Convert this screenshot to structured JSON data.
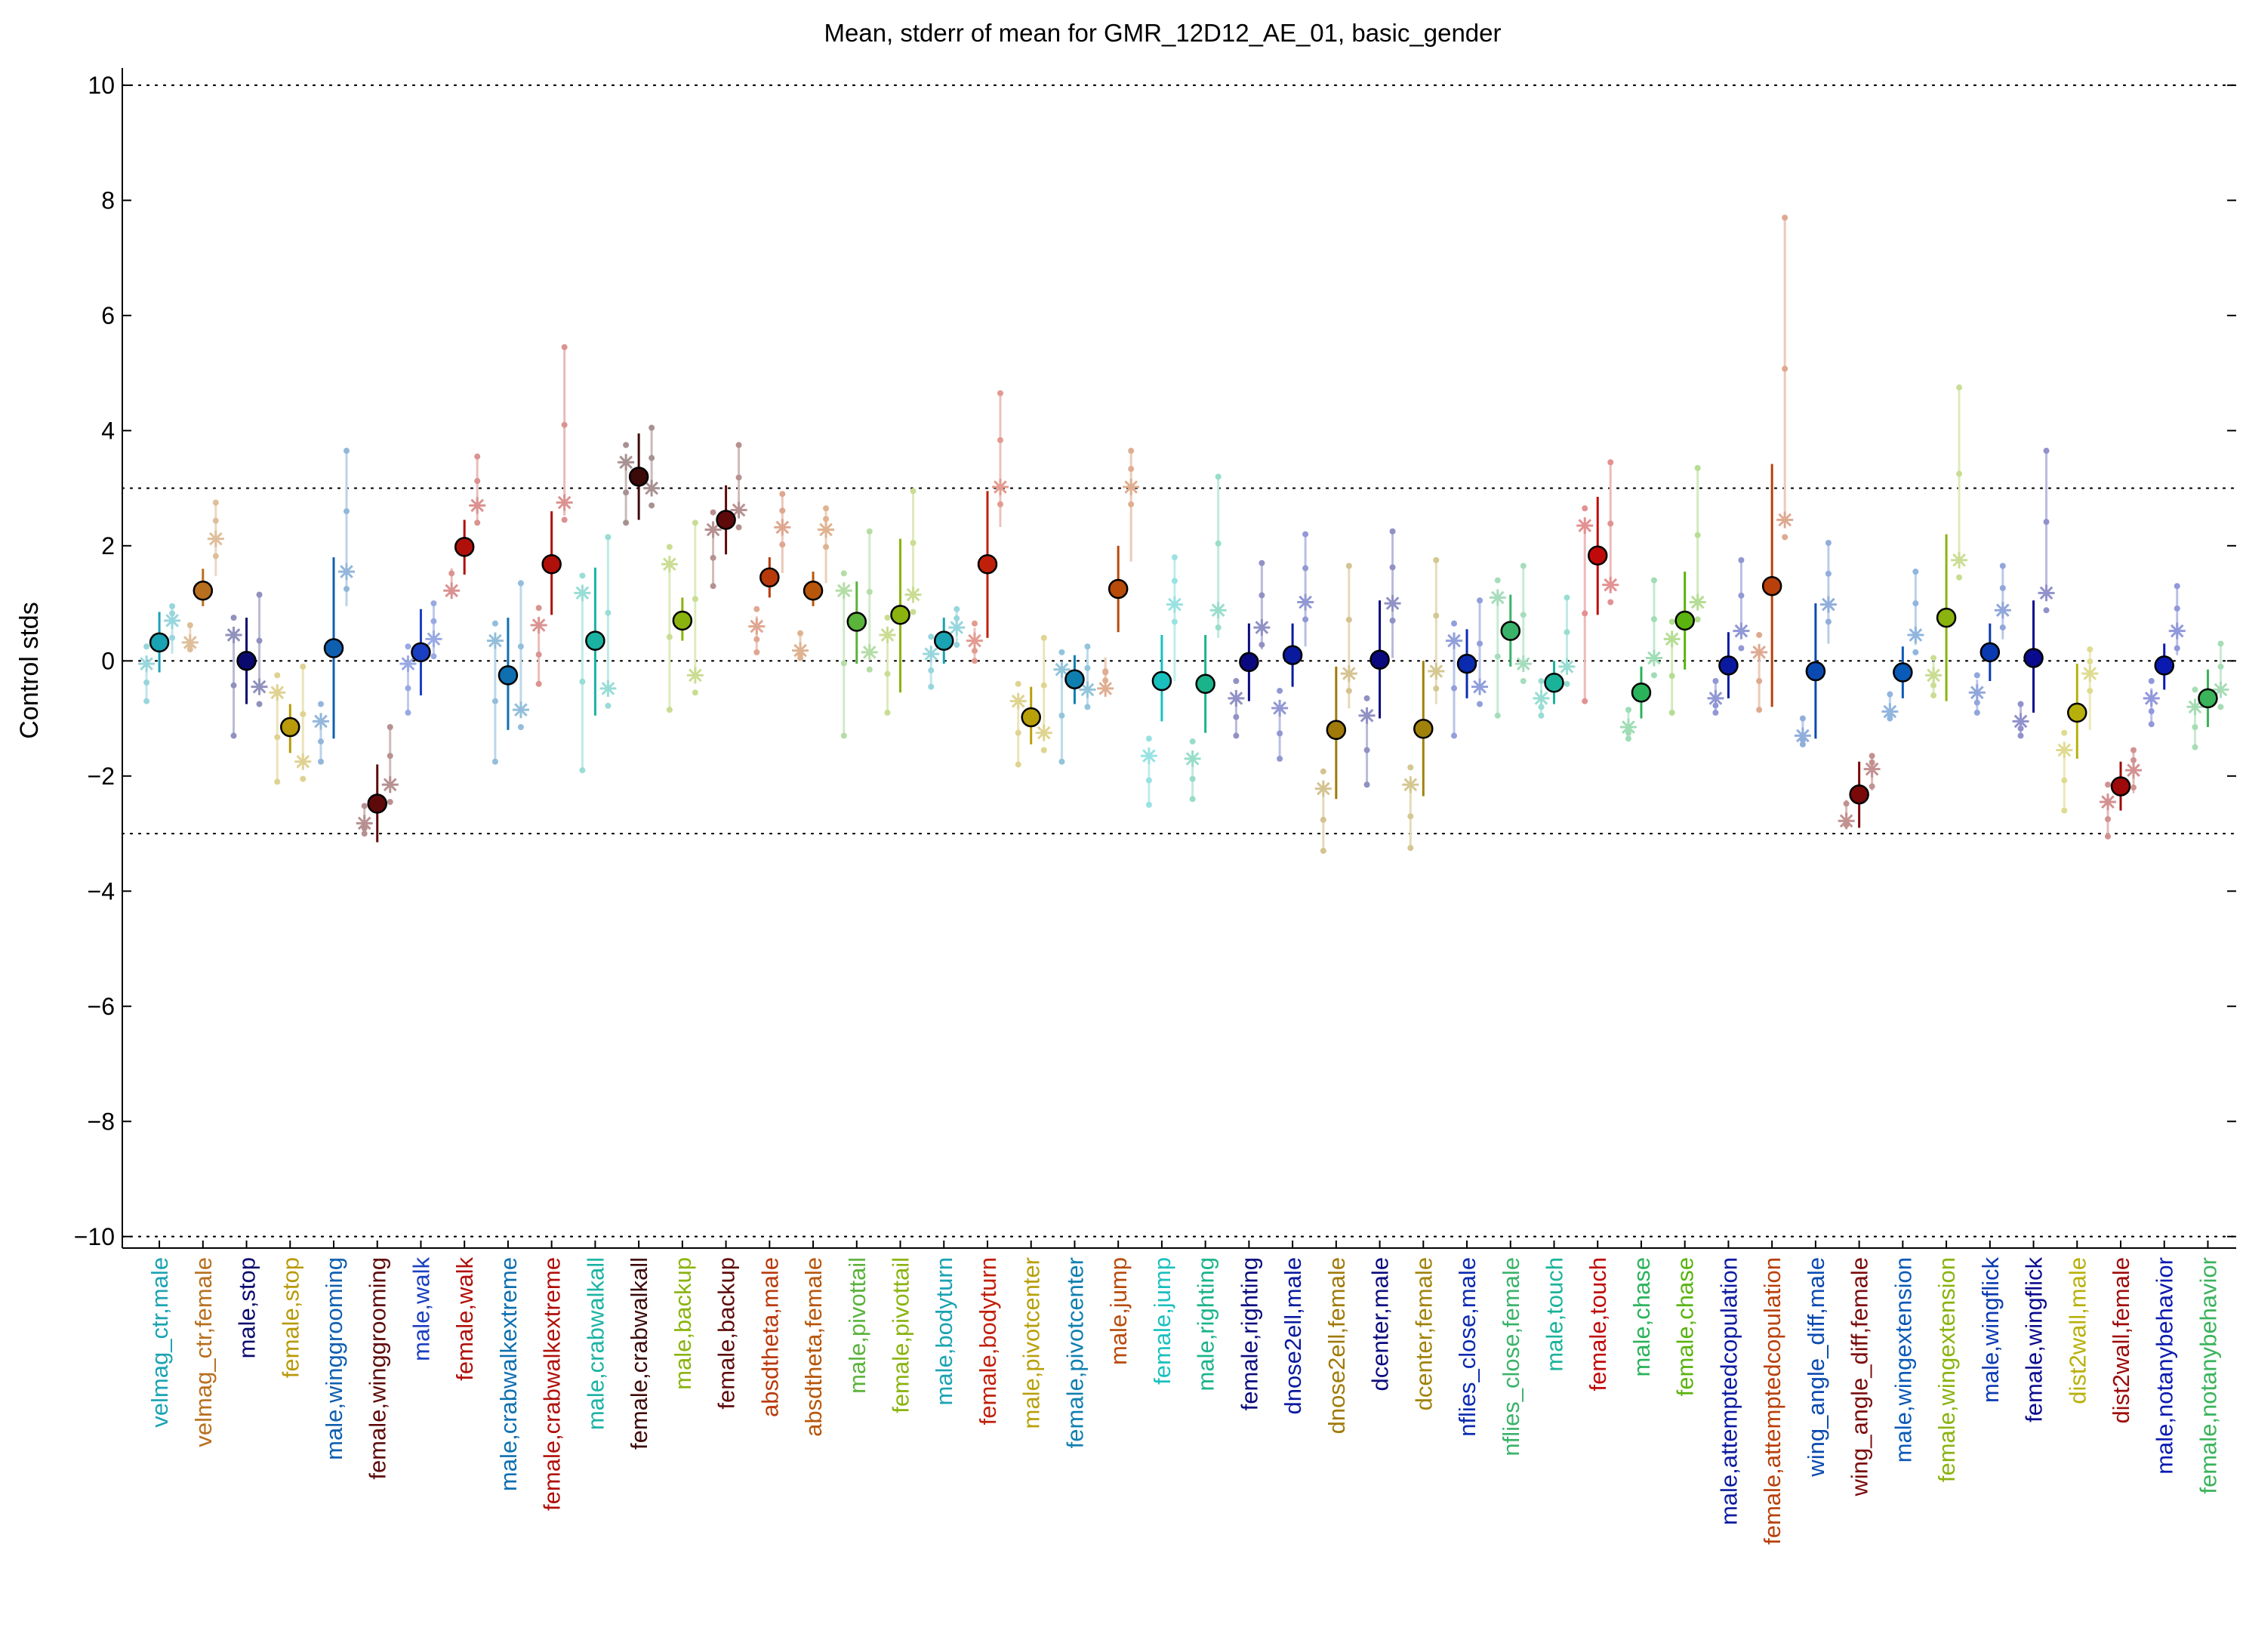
{
  "chart_data": {
    "type": "scatter",
    "title": "Mean, stderr of mean for GMR_12D12_AE_01, basic_gender",
    "ylabel": "Control stds",
    "xlabel": "",
    "ylim": [
      -10.2,
      10.3
    ],
    "yticks": [
      -10,
      -8,
      -6,
      -4,
      -2,
      0,
      2,
      4,
      6,
      8,
      10
    ],
    "reference_lines": [
      -10,
      -3,
      0,
      3,
      10
    ],
    "grid": false,
    "series": [
      {
        "label": "velmag_ctr,male",
        "color": "#1aa3b3",
        "mean": 0.32,
        "lo": -0.2,
        "hi": 0.85,
        "stars": [
          -0.05,
          0.7
        ],
        "dot_range": [
          -0.7,
          0.95
        ]
      },
      {
        "label": "velmag_ctr,female",
        "color": "#b86f1e",
        "mean": 1.22,
        "lo": 0.95,
        "hi": 1.6,
        "stars": [
          0.32,
          2.12
        ],
        "dot_range": [
          0.2,
          2.75
        ]
      },
      {
        "label": "male,stop",
        "color": "#0a0a6e",
        "mean": 0.0,
        "lo": -0.75,
        "hi": 0.75,
        "stars": [
          0.45,
          -0.45
        ],
        "dot_range": [
          -1.3,
          1.15
        ]
      },
      {
        "label": "female,stop",
        "color": "#b89a0a",
        "mean": -1.15,
        "lo": -1.6,
        "hi": -0.75,
        "stars": [
          -0.55,
          -1.75
        ],
        "dot_range": [
          -2.1,
          -0.1
        ]
      },
      {
        "label": "male,winggrooming",
        "color": "#0f5fb0",
        "mean": 0.22,
        "lo": -1.35,
        "hi": 1.8,
        "stars": [
          -1.05,
          1.55
        ],
        "dot_range": [
          -1.75,
          3.65
        ]
      },
      {
        "label": "female,winggrooming",
        "color": "#5e0a0a",
        "mean": -2.48,
        "lo": -3.15,
        "hi": -1.8,
        "stars": [
          -2.82,
          -2.15
        ],
        "dot_range": [
          -3.0,
          -1.15
        ]
      },
      {
        "label": "male,walk",
        "color": "#1a3fc0",
        "mean": 0.15,
        "lo": -0.6,
        "hi": 0.9,
        "stars": [
          -0.05,
          0.38
        ],
        "dot_range": [
          -0.9,
          1.0
        ]
      },
      {
        "label": "female,walk",
        "color": "#b0100a",
        "mean": 1.98,
        "lo": 1.5,
        "hi": 2.45,
        "stars": [
          1.22,
          2.7
        ],
        "dot_range": [
          1.2,
          3.55
        ]
      },
      {
        "label": "male,crabwalkextreme",
        "color": "#0f6fb0",
        "mean": -0.25,
        "lo": -1.2,
        "hi": 0.75,
        "stars": [
          0.35,
          -0.85
        ],
        "dot_range": [
          -1.75,
          1.35
        ]
      },
      {
        "label": "female,crabwalkextreme",
        "color": "#b0100a",
        "mean": 1.68,
        "lo": 0.8,
        "hi": 2.6,
        "stars": [
          0.62,
          2.75
        ],
        "dot_range": [
          -0.4,
          5.45
        ]
      },
      {
        "label": "male,crabwalkall",
        "color": "#1ab3a3",
        "mean": 0.35,
        "lo": -0.95,
        "hi": 1.62,
        "stars": [
          1.18,
          -0.48
        ],
        "dot_range": [
          -1.9,
          2.15
        ]
      },
      {
        "label": "female,crabwalkall",
        "color": "#3d0a0a",
        "mean": 3.2,
        "lo": 2.45,
        "hi": 3.95,
        "stars": [
          3.45,
          3.0
        ],
        "dot_range": [
          2.4,
          4.05
        ]
      },
      {
        "label": "male,backup",
        "color": "#8ab30f",
        "mean": 0.7,
        "lo": 0.35,
        "hi": 1.1,
        "stars": [
          1.68,
          -0.25
        ],
        "dot_range": [
          -0.85,
          2.4
        ]
      },
      {
        "label": "female,backup",
        "color": "#5e0a0a",
        "mean": 2.45,
        "lo": 1.85,
        "hi": 3.05,
        "stars": [
          2.28,
          2.62
        ],
        "dot_range": [
          1.3,
          3.75
        ]
      },
      {
        "label": "absdtheta,male",
        "color": "#b83a0a",
        "mean": 1.45,
        "lo": 1.1,
        "hi": 1.8,
        "stars": [
          0.6,
          2.32
        ],
        "dot_range": [
          0.15,
          2.9
        ]
      },
      {
        "label": "absdtheta,female",
        "color": "#b8560a",
        "mean": 1.22,
        "lo": 0.95,
        "hi": 1.55,
        "stars": [
          0.18,
          2.28
        ],
        "dot_range": [
          0.05,
          2.65
        ]
      },
      {
        "label": "male,pivottail",
        "color": "#5ab33a",
        "mean": 0.68,
        "lo": -0.05,
        "hi": 1.38,
        "stars": [
          1.22,
          0.15
        ],
        "dot_range": [
          -1.3,
          2.25
        ]
      },
      {
        "label": "female,pivottail",
        "color": "#8ab30f",
        "mean": 0.8,
        "lo": -0.55,
        "hi": 2.12,
        "stars": [
          0.45,
          1.15
        ],
        "dot_range": [
          -0.9,
          2.95
        ]
      },
      {
        "label": "male,bodyturn",
        "color": "#1aa3b3",
        "mean": 0.35,
        "lo": -0.05,
        "hi": 0.75,
        "stars": [
          0.12,
          0.58
        ],
        "dot_range": [
          -0.45,
          0.9
        ]
      },
      {
        "label": "female,bodyturn",
        "color": "#c0200a",
        "mean": 1.68,
        "lo": 0.4,
        "hi": 2.95,
        "stars": [
          0.35,
          3.02
        ],
        "dot_range": [
          0.0,
          4.65
        ]
      },
      {
        "label": "male,pivotcenter",
        "color": "#b8a00a",
        "mean": -0.98,
        "lo": -1.45,
        "hi": -0.45,
        "stars": [
          -0.7,
          -1.25
        ],
        "dot_range": [
          -1.8,
          0.4
        ]
      },
      {
        "label": "female,pivotcenter",
        "color": "#0f7fb0",
        "mean": -0.32,
        "lo": -0.75,
        "hi": 0.1,
        "stars": [
          -0.15,
          -0.5
        ],
        "dot_range": [
          -1.75,
          0.25
        ]
      },
      {
        "label": "male,jump",
        "color": "#b84a0a",
        "mean": 1.25,
        "lo": 0.5,
        "hi": 2.0,
        "stars": [
          -0.48,
          3.02
        ],
        "dot_range": [
          -0.2,
          3.65
        ]
      },
      {
        "label": "female,jump",
        "color": "#1abfbf",
        "mean": -0.35,
        "lo": -1.05,
        "hi": 0.45,
        "stars": [
          -1.65,
          0.98
        ],
        "dot_range": [
          -2.5,
          1.8
        ]
      },
      {
        "label": "male,righting",
        "color": "#1ab38a",
        "mean": -0.4,
        "lo": -1.25,
        "hi": 0.45,
        "stars": [
          -1.7,
          0.88
        ],
        "dot_range": [
          -2.4,
          3.2
        ]
      },
      {
        "label": "female,righting",
        "color": "#0a0a7e",
        "mean": -0.02,
        "lo": -0.7,
        "hi": 0.65,
        "stars": [
          -0.65,
          0.58
        ],
        "dot_range": [
          -1.3,
          1.7
        ]
      },
      {
        "label": "dnose2ell,male",
        "color": "#0a1a9e",
        "mean": 0.1,
        "lo": -0.45,
        "hi": 0.65,
        "stars": [
          -0.82,
          1.02
        ],
        "dot_range": [
          -1.7,
          2.2
        ]
      },
      {
        "label": "dnose2ell,female",
        "color": "#a07a0a",
        "mean": -1.2,
        "lo": -2.4,
        "hi": -0.1,
        "stars": [
          -2.22,
          -0.22
        ],
        "dot_range": [
          -3.3,
          1.65
        ]
      },
      {
        "label": "dcenter,male",
        "color": "#0a0a7e",
        "mean": 0.02,
        "lo": -1.0,
        "hi": 1.05,
        "stars": [
          -0.95,
          1.0
        ],
        "dot_range": [
          -2.15,
          2.25
        ]
      },
      {
        "label": "dcenter,female",
        "color": "#a0820a",
        "mean": -1.18,
        "lo": -2.35,
        "hi": 0.0,
        "stars": [
          -2.15,
          -0.18
        ],
        "dot_range": [
          -3.25,
          1.75
        ]
      },
      {
        "label": "nflies_close,male",
        "color": "#0a2ab0",
        "mean": -0.05,
        "lo": -0.65,
        "hi": 0.55,
        "stars": [
          0.35,
          -0.45
        ],
        "dot_range": [
          -1.3,
          1.05
        ]
      },
      {
        "label": "nflies_close,female",
        "color": "#3ab36a",
        "mean": 0.52,
        "lo": -0.1,
        "hi": 1.15,
        "stars": [
          1.1,
          -0.05
        ],
        "dot_range": [
          -0.95,
          1.65
        ]
      },
      {
        "label": "male,touch",
        "color": "#1ab39a",
        "mean": -0.38,
        "lo": -0.75,
        "hi": 0.0,
        "stars": [
          -0.65,
          -0.1
        ],
        "dot_range": [
          -0.95,
          1.1
        ]
      },
      {
        "label": "female,touch",
        "color": "#c00a0a",
        "mean": 1.83,
        "lo": 0.8,
        "hi": 2.85,
        "stars": [
          2.35,
          1.32
        ],
        "dot_range": [
          -0.7,
          3.45
        ]
      },
      {
        "label": "male,chase",
        "color": "#2ab35a",
        "mean": -0.55,
        "lo": -1.0,
        "hi": -0.1,
        "stars": [
          -1.15,
          0.05
        ],
        "dot_range": [
          -1.35,
          1.4
        ]
      },
      {
        "label": "female,chase",
        "color": "#5ab30f",
        "mean": 0.7,
        "lo": -0.15,
        "hi": 1.55,
        "stars": [
          0.38,
          1.02
        ],
        "dot_range": [
          -0.9,
          3.35
        ]
      },
      {
        "label": "male,attemptedcopulation",
        "color": "#0a1aa0",
        "mean": -0.08,
        "lo": -0.65,
        "hi": 0.5,
        "stars": [
          -0.65,
          0.52
        ],
        "dot_range": [
          -0.9,
          1.75
        ]
      },
      {
        "label": "female,attemptedcopulation",
        "color": "#b8400a",
        "mean": 1.3,
        "lo": -0.8,
        "hi": 3.42,
        "stars": [
          0.15,
          2.45
        ],
        "dot_range": [
          -0.85,
          7.7
        ]
      },
      {
        "label": "wing_angle_diff,male",
        "color": "#0a4ab0",
        "mean": -0.18,
        "lo": -1.35,
        "hi": 1.0,
        "stars": [
          -1.3,
          0.98
        ],
        "dot_range": [
          -1.45,
          2.05
        ]
      },
      {
        "label": "wing_angle_diff,female",
        "color": "#7a0a0a",
        "mean": -2.32,
        "lo": -2.9,
        "hi": -1.75,
        "stars": [
          -2.78,
          -1.88
        ],
        "dot_range": [
          -2.85,
          -1.65
        ]
      },
      {
        "label": "male,wingextension",
        "color": "#0a5ab8",
        "mean": -0.2,
        "lo": -0.65,
        "hi": 0.25,
        "stars": [
          -0.88,
          0.45
        ],
        "dot_range": [
          -1.0,
          1.55
        ]
      },
      {
        "label": "female,wingextension",
        "color": "#8ab30f",
        "mean": 0.75,
        "lo": -0.7,
        "hi": 2.2,
        "stars": [
          -0.25,
          1.75
        ],
        "dot_range": [
          -0.6,
          4.75
        ]
      },
      {
        "label": "male,wingflick",
        "color": "#0a3ab0",
        "mean": 0.15,
        "lo": -0.35,
        "hi": 0.65,
        "stars": [
          -0.55,
          0.88
        ],
        "dot_range": [
          -0.9,
          1.65
        ]
      },
      {
        "label": "female,wingflick",
        "color": "#0a0a8e",
        "mean": 0.05,
        "lo": -0.9,
        "hi": 1.05,
        "stars": [
          -1.05,
          1.18
        ],
        "dot_range": [
          -1.3,
          3.65
        ]
      },
      {
        "label": "dist2wall,male",
        "color": "#b8b00a",
        "mean": -0.9,
        "lo": -1.7,
        "hi": -0.05,
        "stars": [
          -1.55,
          -0.22
        ],
        "dot_range": [
          -2.6,
          0.2
        ]
      },
      {
        "label": "dist2wall,female",
        "color": "#9e0a0a",
        "mean": -2.18,
        "lo": -2.6,
        "hi": -1.75,
        "stars": [
          -2.45,
          -1.9
        ],
        "dot_range": [
          -3.05,
          -1.55
        ]
      },
      {
        "label": "male,notanybehavior",
        "color": "#0a1ab0",
        "mean": -0.08,
        "lo": -0.5,
        "hi": 0.3,
        "stars": [
          -0.65,
          0.52
        ],
        "dot_range": [
          -1.1,
          1.3
        ]
      },
      {
        "label": "female,notanybehavior",
        "color": "#3ab35a",
        "mean": -0.65,
        "lo": -1.15,
        "hi": -0.15,
        "stars": [
          -0.8,
          -0.5
        ],
        "dot_range": [
          -1.5,
          0.3
        ]
      }
    ]
  }
}
